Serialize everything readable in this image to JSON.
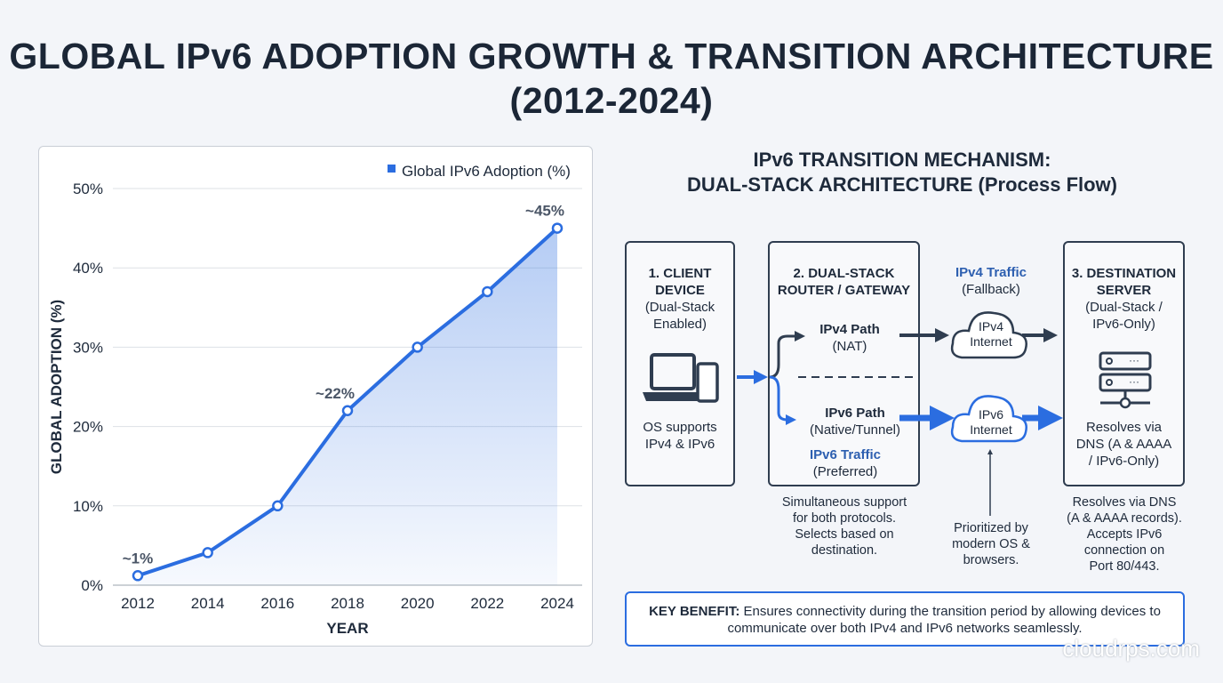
{
  "title": "GLOBAL IPv6 ADOPTION GROWTH & TRANSITION ARCHITECTURE (2012-2024)",
  "chart_data": {
    "type": "area",
    "title": "",
    "xlabel": "YEAR",
    "ylabel": "GLOBAL ADOPTION (%)",
    "x": [
      2012,
      2014,
      2016,
      2018,
      2020,
      2022,
      2024
    ],
    "series": [
      {
        "name": "Global IPv6 Adoption (%)",
        "values": [
          1.2,
          4.1,
          10,
          22,
          30,
          37,
          45
        ],
        "color": "#2b6de0"
      }
    ],
    "ylim": [
      0,
      50
    ],
    "yticks": [
      "0%",
      "10%",
      "20%",
      "30%",
      "40%",
      "50%"
    ],
    "xticks": [
      "2012",
      "2014",
      "2016",
      "2018",
      "2020",
      "2022",
      "2024"
    ],
    "grid": true,
    "legend": "top-right",
    "annotations": [
      {
        "x": 2012,
        "text": "~1%"
      },
      {
        "x": 2018,
        "text": "~22%"
      },
      {
        "x": 2024,
        "text": "~45%"
      }
    ]
  },
  "diagram": {
    "subtitle_line1": "IPv6 TRANSITION MECHANISM:",
    "subtitle_line2": "DUAL-STACK ARCHITECTURE (Process Flow)",
    "client": {
      "title1": "1. CLIENT",
      "title2": "DEVICE",
      "sub1": "(Dual-Stack",
      "sub2": "Enabled)",
      "note1": "OS supports",
      "note2": "IPv4 & IPv6"
    },
    "router": {
      "title1": "2. DUAL-STACK",
      "title2": "ROUTER / GATEWAY",
      "v4": "IPv4 Path",
      "v4sub": "(NAT)",
      "v6": "IPv6 Path",
      "v6sub": "(Native/Tunnel)",
      "v6traffic": "IPv6 Traffic",
      "v6pref": "(Preferred)",
      "note": [
        "Simultaneous support",
        "for both protocols.",
        "Selects based on",
        "destination."
      ]
    },
    "v4traffic": "IPv4 Traffic",
    "v4fallback": "(Fallback)",
    "cloud4": [
      "IPv4",
      "Internet"
    ],
    "cloud6": [
      "IPv6",
      "Internet"
    ],
    "cloud_note": [
      "Prioritized by",
      "modern OS &",
      "browsers."
    ],
    "server": {
      "title1": "3. DESTINATION",
      "title2": "SERVER",
      "sub1": "(Dual-Stack /",
      "sub2": "IPv6-Only)",
      "in1": "Resolves via",
      "in2": "DNS (A & AAAA",
      "in3": "/ IPv6-Only)",
      "note": [
        "Resolves via DNS",
        "(A & AAAA records).",
        "Accepts IPv6",
        "connection on",
        "Port 80/443."
      ]
    },
    "benefit_label": "KEY BENEFIT:",
    "benefit_text": " Ensures connectivity during the transition period by allowing devices to communicate over both IPv4 and IPv6 networks seamlessly."
  },
  "watermark": "cloudrps.com"
}
